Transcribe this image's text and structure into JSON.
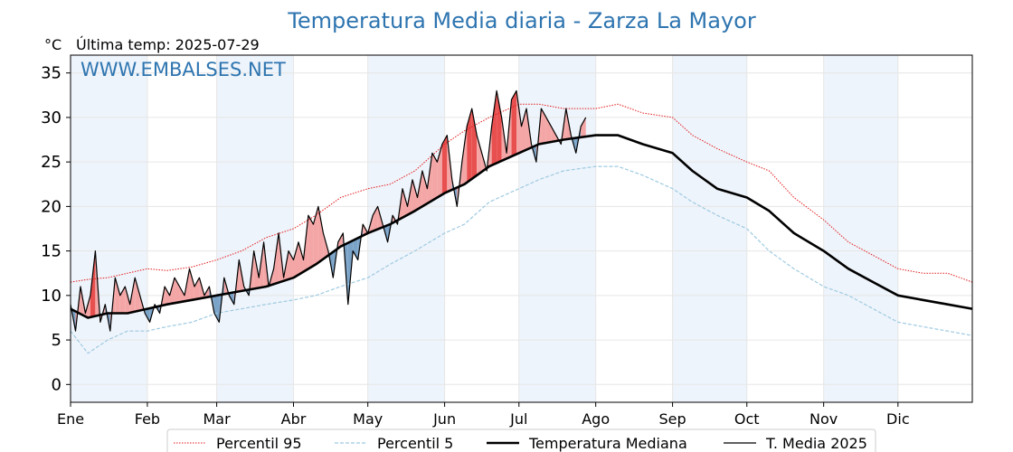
{
  "chart_data": {
    "type": "line",
    "title": "Temperatura Media diaria - Zarza La Mayor",
    "unit": "°C",
    "last_update": "Última temp: 2025-07-29",
    "watermark": "WWW.EMBALSES.NET",
    "ylim": [
      -2,
      37
    ],
    "yticks": [
      0,
      5,
      10,
      15,
      20,
      25,
      30,
      35
    ],
    "months": [
      "Ene",
      "Feb",
      "Mar",
      "Abr",
      "May",
      "Jun",
      "Jul",
      "Ago",
      "Sep",
      "Oct",
      "Nov",
      "Dic"
    ],
    "month_start_day": [
      1,
      32,
      60,
      91,
      121,
      152,
      182,
      213,
      244,
      274,
      305,
      335
    ],
    "grid": true,
    "legend_position": "bottom",
    "series": [
      {
        "name": "Percentil 95",
        "style": "dotted",
        "color": "#e31a1c",
        "x": [
          1,
          8,
          16,
          24,
          32,
          40,
          50,
          60,
          70,
          80,
          91,
          100,
          110,
          121,
          130,
          140,
          152,
          160,
          170,
          182,
          190,
          200,
          213,
          222,
          232,
          244,
          252,
          262,
          274,
          283,
          293,
          305,
          315,
          325,
          335,
          345,
          355,
          365
        ],
        "values": [
          11.5,
          11.8,
          12.0,
          12.5,
          13.0,
          12.8,
          13.2,
          14.0,
          15.0,
          16.5,
          17.5,
          19.0,
          21.0,
          22.0,
          22.5,
          24.0,
          27.0,
          28.5,
          30.0,
          31.5,
          31.5,
          31.0,
          31.0,
          31.5,
          30.5,
          30.0,
          28.0,
          26.5,
          25.0,
          24.0,
          21.0,
          18.5,
          16.0,
          14.5,
          13.0,
          12.5,
          12.5,
          11.5
        ]
      },
      {
        "name": "Percentil 5",
        "style": "dashed",
        "color": "#9ecae1",
        "x": [
          1,
          8,
          16,
          24,
          32,
          40,
          50,
          60,
          70,
          80,
          91,
          100,
          110,
          121,
          130,
          140,
          152,
          160,
          170,
          182,
          190,
          200,
          213,
          222,
          232,
          244,
          252,
          262,
          274,
          283,
          293,
          305,
          315,
          325,
          335,
          345,
          355,
          365
        ],
        "values": [
          6.0,
          3.5,
          5.0,
          6.0,
          6.0,
          6.5,
          7.0,
          8.0,
          8.5,
          9.0,
          9.5,
          10.0,
          11.0,
          12.0,
          13.5,
          15.0,
          17.0,
          18.0,
          20.5,
          22.0,
          23.0,
          24.0,
          24.5,
          24.5,
          23.5,
          22.0,
          20.5,
          19.0,
          17.5,
          15.0,
          13.0,
          11.0,
          10.0,
          8.5,
          7.0,
          6.5,
          6.0,
          5.5
        ]
      },
      {
        "name": "Temperatura Mediana",
        "style": "thick",
        "color": "#000000",
        "x": [
          1,
          8,
          16,
          24,
          32,
          40,
          50,
          60,
          70,
          80,
          91,
          100,
          110,
          121,
          130,
          140,
          152,
          160,
          170,
          182,
          190,
          200,
          213,
          222,
          232,
          244,
          252,
          262,
          274,
          283,
          293,
          305,
          315,
          325,
          335,
          345,
          355,
          365
        ],
        "values": [
          8.5,
          7.5,
          8.0,
          8.0,
          8.5,
          9.0,
          9.5,
          10.0,
          10.5,
          11.0,
          12.0,
          13.5,
          15.5,
          17.0,
          18.0,
          19.5,
          21.5,
          22.5,
          24.5,
          26.0,
          27.0,
          27.5,
          28.0,
          28.0,
          27.0,
          26.0,
          24.0,
          22.0,
          21.0,
          19.5,
          17.0,
          15.0,
          13.0,
          11.5,
          10.0,
          9.5,
          9.0,
          8.5
        ]
      },
      {
        "name": "T. Media 2025",
        "style": "thin",
        "color": "#000000",
        "x": [
          1,
          3,
          5,
          7,
          9,
          11,
          13,
          15,
          17,
          19,
          21,
          23,
          25,
          27,
          29,
          31,
          33,
          35,
          37,
          39,
          41,
          43,
          45,
          47,
          49,
          51,
          53,
          55,
          57,
          59,
          61,
          63,
          65,
          67,
          69,
          71,
          73,
          75,
          77,
          79,
          81,
          83,
          85,
          87,
          89,
          91,
          93,
          95,
          97,
          99,
          101,
          103,
          105,
          107,
          109,
          111,
          113,
          115,
          117,
          119,
          121,
          123,
          125,
          127,
          129,
          131,
          133,
          135,
          137,
          139,
          141,
          143,
          145,
          147,
          149,
          151,
          153,
          155,
          157,
          159,
          161,
          163,
          165,
          167,
          169,
          171,
          173,
          175,
          177,
          179,
          181,
          183,
          185,
          187,
          189,
          191,
          193,
          195,
          197,
          199,
          201,
          203,
          205,
          207,
          209
        ],
        "values": [
          9,
          6,
          11,
          8,
          10,
          15,
          7,
          9,
          6,
          12,
          10,
          11,
          9,
          12,
          10,
          8,
          7,
          9,
          8,
          11,
          10,
          12,
          11,
          10,
          13,
          11,
          12,
          10,
          11,
          8,
          7,
          12,
          10,
          9,
          14,
          11,
          10,
          15,
          12,
          16,
          11,
          13,
          17,
          12,
          15,
          14,
          16,
          14,
          19,
          18,
          20,
          17,
          15,
          12,
          16,
          17,
          9,
          15,
          14,
          18,
          17,
          19,
          20,
          18,
          16,
          19,
          18,
          22,
          20,
          23,
          21,
          24,
          22,
          26,
          25,
          27,
          28,
          23,
          20,
          25,
          29,
          31,
          28,
          26,
          24,
          29,
          33,
          30,
          26,
          32,
          33,
          29,
          31,
          27,
          25,
          31,
          30,
          29,
          28,
          27,
          31,
          28,
          26,
          29,
          30
        ]
      }
    ],
    "legend": [
      {
        "name": "Percentil 95",
        "style": "dotted",
        "color": "#e31a1c"
      },
      {
        "name": "Percentil 5",
        "style": "dashed",
        "color": "#9ecae1"
      },
      {
        "name": "Temperatura Mediana",
        "style": "thick",
        "color": "#000000"
      },
      {
        "name": "T. Media 2025",
        "style": "thin",
        "color": "#000000"
      }
    ],
    "colors": {
      "above_fill": "#f4a6a6",
      "above_fill_strong": "#e8504f",
      "below_fill": "#7aa3c8",
      "band_fill": "#eef4fb",
      "title": "#2e75b0"
    }
  }
}
